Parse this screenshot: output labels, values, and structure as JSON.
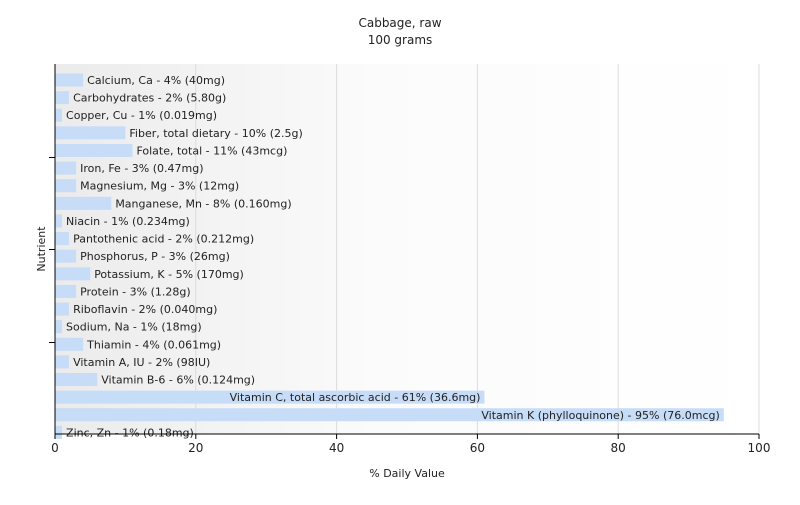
{
  "chart_data": {
    "type": "bar",
    "orientation": "horizontal",
    "title": "Cabbage, raw",
    "subtitle": "100 grams",
    "xlabel": "% Daily Value",
    "ylabel": "Nutrient",
    "xlim": [
      0,
      100
    ],
    "x_ticks": [
      "0",
      "20",
      "40",
      "60",
      "80",
      "100"
    ],
    "grid": true,
    "bar_color": "#c6dcf7",
    "categories": [
      "Calcium, Ca",
      "Carbohydrates",
      "Copper, Cu",
      "Fiber, total dietary",
      "Folate, total",
      "Iron, Fe",
      "Magnesium, Mg",
      "Manganese, Mn",
      "Niacin",
      "Pantothenic acid",
      "Phosphorus, P",
      "Potassium, K",
      "Protein",
      "Riboflavin",
      "Sodium, Na",
      "Thiamin",
      "Vitamin A, IU",
      "Vitamin B-6",
      "Vitamin C, total ascorbic acid",
      "Vitamin K (phylloquinone)",
      "Zinc, Zn"
    ],
    "values": [
      4,
      2,
      1,
      10,
      11,
      3,
      3,
      8,
      1,
      2,
      3,
      5,
      3,
      2,
      1,
      4,
      2,
      6,
      61,
      95,
      1
    ],
    "labels": [
      "Calcium, Ca - 4% (40mg)",
      "Carbohydrates - 2% (5.80g)",
      "Copper, Cu - 1% (0.019mg)",
      "Fiber, total dietary - 10% (2.5g)",
      "Folate, total - 11% (43mcg)",
      "Iron, Fe - 3% (0.47mg)",
      "Magnesium, Mg - 3% (12mg)",
      "Manganese, Mn - 8% (0.160mg)",
      "Niacin - 1% (0.234mg)",
      "Pantothenic acid - 2% (0.212mg)",
      "Phosphorus, P - 3% (26mg)",
      "Potassium, K - 5% (170mg)",
      "Protein - 3% (1.28g)",
      "Riboflavin - 2% (0.040mg)",
      "Sodium, Na - 1% (18mg)",
      "Thiamin - 4% (0.061mg)",
      "Vitamin A, IU - 2% (98IU)",
      "Vitamin B-6 - 6% (0.124mg)",
      "Vitamin C, total ascorbic acid - 61% (36.6mg)",
      "Vitamin K (phylloquinone) - 95% (76.0mcg)",
      "Zinc, Zn - 1% (0.18mg)"
    ]
  }
}
